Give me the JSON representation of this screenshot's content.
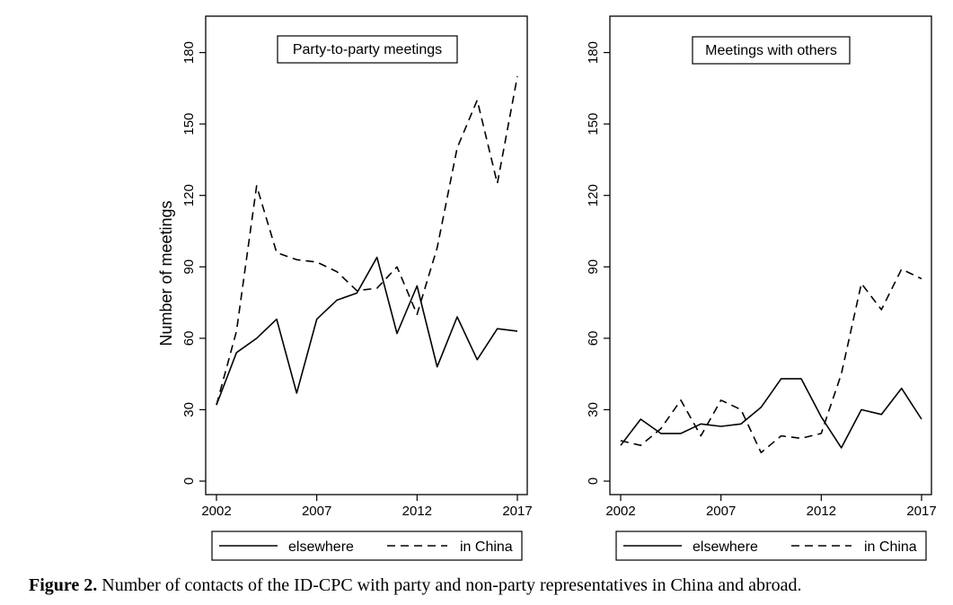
{
  "figure": {
    "caption_label": "Figure 2.",
    "caption_text": " Number of contacts of the ID-CPC with party and non-party representatives in China and abroad."
  },
  "chart_data": [
    {
      "type": "line",
      "title": "Party-to-party meetings",
      "xlabel": "",
      "ylabel": "Number of meetings",
      "xlim": [
        2002,
        2017
      ],
      "ylim": [
        0,
        200
      ],
      "xticks": [
        2002,
        2007,
        2012,
        2017
      ],
      "yticks": [
        0,
        30,
        60,
        90,
        120,
        150,
        180
      ],
      "grid": false,
      "legend_position": "bottom",
      "x": [
        2002,
        2003,
        2004,
        2005,
        2006,
        2007,
        2008,
        2009,
        2010,
        2011,
        2012,
        2013,
        2014,
        2015,
        2016,
        2017
      ],
      "series": [
        {
          "name": "elsewhere",
          "style": "solid",
          "values": [
            32,
            54,
            60,
            68,
            37,
            68,
            76,
            79,
            94,
            62,
            82,
            48,
            69,
            51,
            64,
            63
          ]
        },
        {
          "name": "in China",
          "style": "dashed",
          "values": [
            32,
            63,
            124,
            96,
            93,
            92,
            88,
            80,
            81,
            90,
            70,
            98,
            140,
            160,
            125,
            170
          ]
        }
      ]
    },
    {
      "type": "line",
      "title": "Meetings with others",
      "xlabel": "",
      "ylabel": "",
      "xlim": [
        2002,
        2017
      ],
      "ylim": [
        0,
        200
      ],
      "xticks": [
        2002,
        2007,
        2012,
        2017
      ],
      "yticks": [
        0,
        30,
        60,
        90,
        120,
        150,
        180
      ],
      "grid": false,
      "legend_position": "bottom",
      "x": [
        2002,
        2003,
        2004,
        2005,
        2006,
        2007,
        2008,
        2009,
        2010,
        2011,
        2012,
        2013,
        2014,
        2015,
        2016,
        2017
      ],
      "series": [
        {
          "name": "elsewhere",
          "style": "solid",
          "values": [
            15,
            26,
            20,
            20,
            24,
            23,
            24,
            31,
            43,
            43,
            27,
            14,
            30,
            28,
            39,
            26
          ]
        },
        {
          "name": "in China",
          "style": "dashed",
          "values": [
            17,
            15,
            22,
            34,
            19,
            34,
            30,
            12,
            19,
            18,
            20,
            45,
            83,
            72,
            89,
            85
          ]
        }
      ]
    }
  ]
}
